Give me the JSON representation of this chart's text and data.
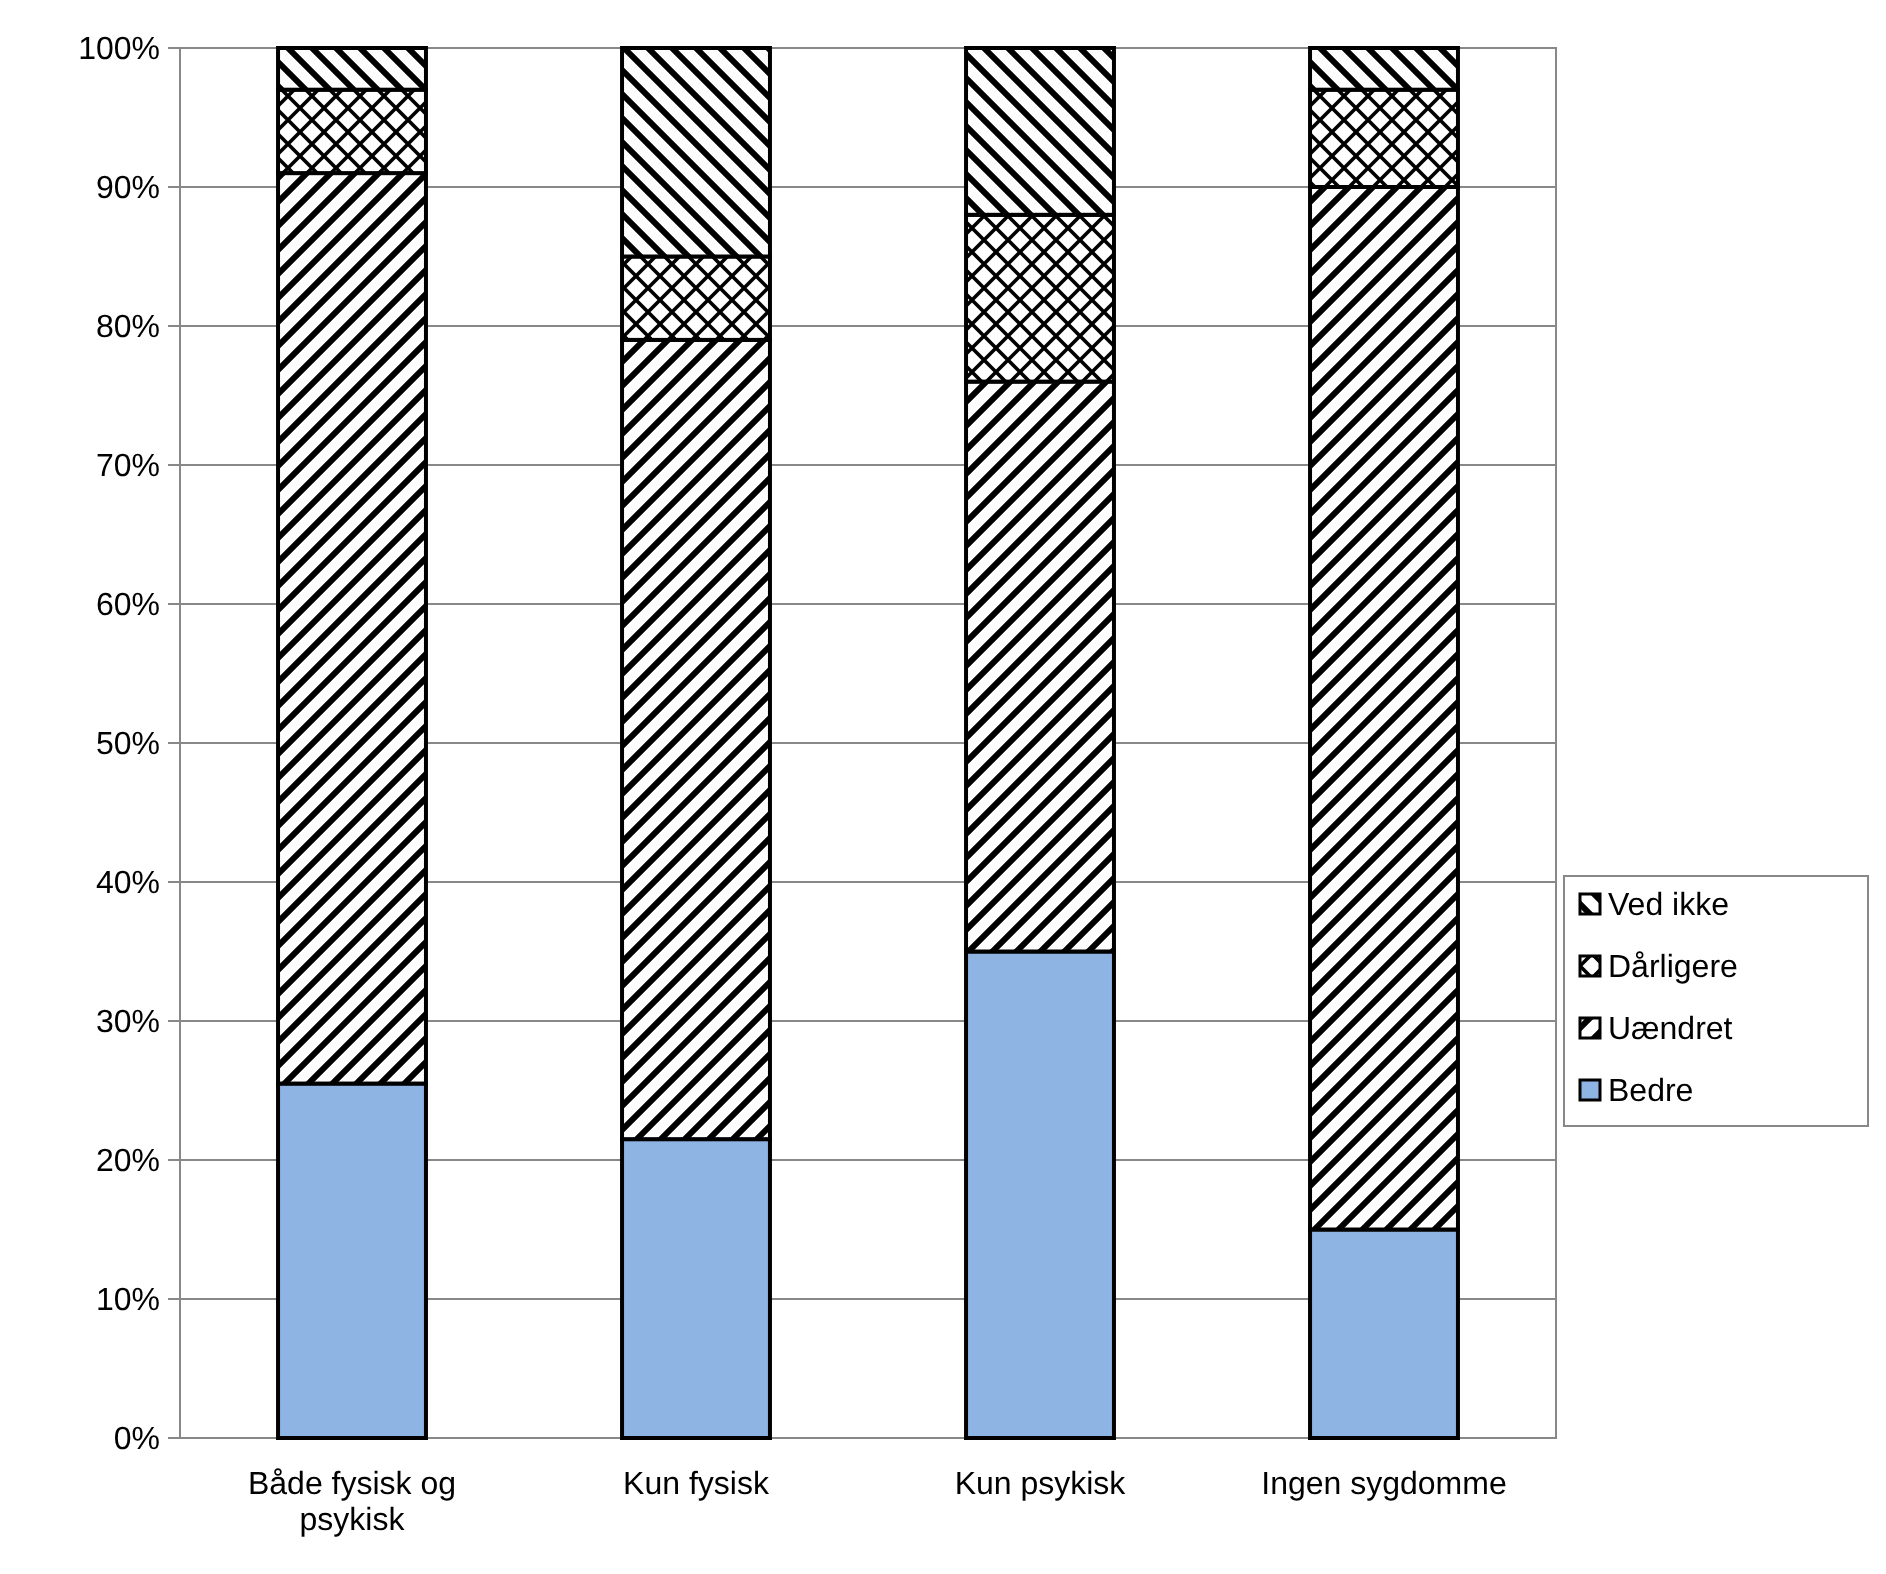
{
  "chart_data": {
    "type": "bar",
    "stacked": true,
    "categories": [
      "Både fysisk og psykisk",
      "Kun fysisk",
      "Kun psykisk",
      "Ingen sygdomme"
    ],
    "series": [
      {
        "name": "Bedre",
        "color": "#8eb4e3",
        "values": [
          25.5,
          21.5,
          35,
          15
        ]
      },
      {
        "name": "Uændret",
        "color": "#000000",
        "values": [
          65.5,
          57.5,
          41,
          75
        ]
      },
      {
        "name": "Dårligere",
        "color": "#000000",
        "values": [
          6,
          6,
          12,
          7
        ]
      },
      {
        "name": "Ved ikke",
        "color": "#000000",
        "values": [
          3,
          15,
          12,
          3
        ]
      }
    ],
    "ylim": [
      0,
      100
    ],
    "yticks": [
      {
        "value": 0,
        "label": "0%"
      },
      {
        "value": 10,
        "label": "10%"
      },
      {
        "value": 20,
        "label": "20%"
      },
      {
        "value": 30,
        "label": "30%"
      },
      {
        "value": 40,
        "label": "40%"
      },
      {
        "value": 50,
        "label": "50%"
      },
      {
        "value": 60,
        "label": "60%"
      },
      {
        "value": 70,
        "label": "70%"
      },
      {
        "value": 80,
        "label": "80%"
      },
      {
        "value": 90,
        "label": "90%"
      },
      {
        "value": 100,
        "label": "100%"
      }
    ],
    "grid": "y",
    "legend": "right"
  }
}
